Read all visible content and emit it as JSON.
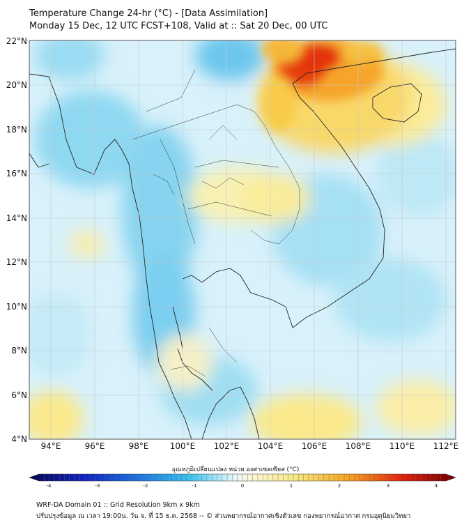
{
  "header": {
    "title_line1": "Temperature Change 24-hr (°C) - [Data Assimilation]",
    "title_line2": "Monday 15 Dec, 12 UTC FCST+108, Valid at :: Sat 20 Dec, 00 UTC"
  },
  "map": {
    "lat_labels": [
      "22°N",
      "20°N",
      "18°N",
      "16°N",
      "14°N",
      "12°N",
      "10°N",
      "8°N",
      "6°N",
      "4°N"
    ],
    "lon_labels": [
      "94°E",
      "96°E",
      "98°E",
      "100°E",
      "102°E",
      "104°E",
      "106°E",
      "108°E",
      "110°E",
      "112°E"
    ]
  },
  "colorbar": {
    "label": "อุณหภูมิเปลี่ยนแปลง หน่วย องศาเซลเซียส (°C)",
    "ticks": [
      "-4",
      "-3",
      "-2",
      "-1",
      "0",
      "1",
      "2",
      "3",
      "4"
    ],
    "range": [
      -4,
      4
    ]
  },
  "footer": {
    "line1": "WRF-DA Domain 01 :: Grid Resolution 9km x 9km",
    "line2": "ปรับปรุงข้อมูล ณ เวลา 19:00น. วัน จ. ที่ 15 ธ.ค. 2568 -- © ส่วนพยากรณ์อากาศเชิงตัวเลข กองพยากรณ์อากาศ กรมอุตุนิยมวิทยา"
  },
  "colors": {
    "cold": "#7fd0ef",
    "neutral": "#eef7fb",
    "warm_light": "#fbf3a8",
    "warm": "#f8b030",
    "hot": "#e8280c"
  }
}
